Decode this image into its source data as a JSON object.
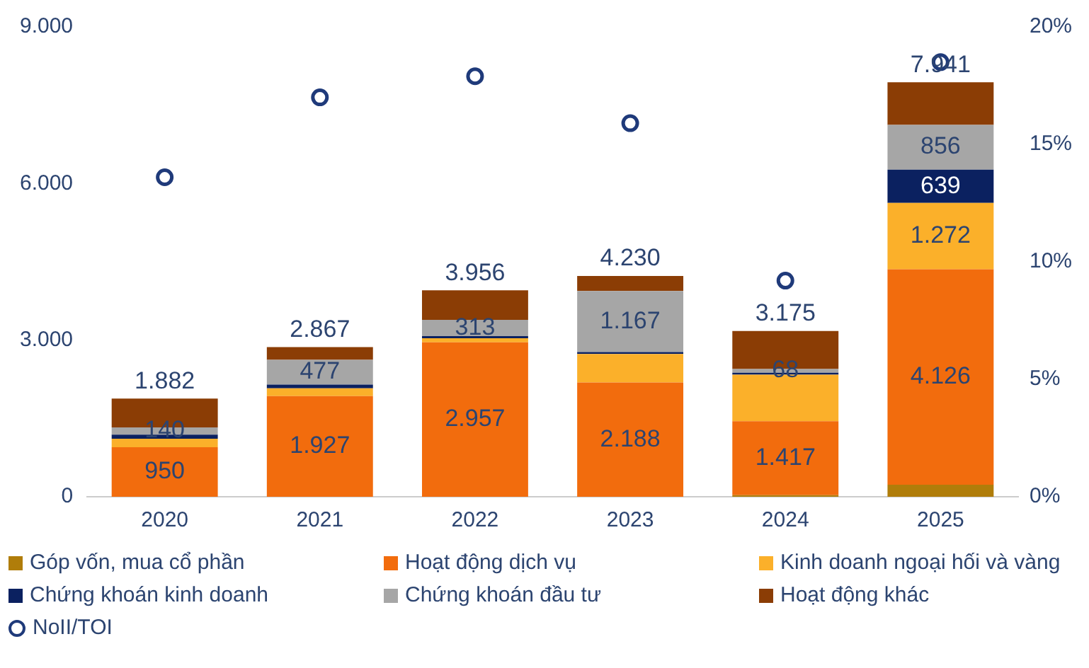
{
  "chart_data": {
    "type": "bar",
    "stacked": true,
    "categories": [
      "2020",
      "2021",
      "2022",
      "2023",
      "2024",
      "2025"
    ],
    "series": [
      {
        "name": "Góp vốn, mua cổ phần",
        "color": "#b07d0a",
        "values": [
          0,
          0,
          0,
          0,
          30,
          230
        ],
        "value_labels": [
          null,
          null,
          null,
          null,
          null,
          null
        ]
      },
      {
        "name": "Hoạt động dịch vụ",
        "color": "#f26c0d",
        "values": [
          950,
          1927,
          2957,
          2188,
          1417,
          4126
        ],
        "value_labels": [
          "950",
          "1.927",
          "2.957",
          "2.188",
          "1.417",
          "4.126"
        ]
      },
      {
        "name": "Kinh doanh ngoại hối và vàng",
        "color": "#fbb02a",
        "values": [
          160,
          150,
          80,
          545,
          890,
          1272
        ],
        "value_labels": [
          null,
          null,
          null,
          null,
          null,
          "1.272"
        ]
      },
      {
        "name": "Chứng khoán kinh doanh",
        "color": "#0b2160",
        "values": [
          80,
          70,
          40,
          40,
          40,
          639
        ],
        "value_labels": [
          null,
          null,
          null,
          null,
          null,
          "639"
        ]
      },
      {
        "name": "Chứng khoán đầu tư",
        "color": "#a6a6a6",
        "values": [
          140,
          477,
          313,
          1167,
          68,
          856
        ],
        "value_labels": [
          "140",
          "477",
          "313",
          "1.167",
          "68",
          "856"
        ]
      },
      {
        "name": "Hoạt động khác",
        "color": "#8b3d05",
        "values": [
          552,
          243,
          566,
          290,
          730,
          818
        ],
        "value_labels": [
          null,
          null,
          null,
          null,
          null,
          null
        ]
      },
      {
        "name": "NoII/TOI",
        "type": "scatter",
        "axis": "y2",
        "marker": "circle",
        "color": "#1f3a7a",
        "values": [
          13.6,
          17.0,
          17.9,
          15.9,
          9.2,
          18.5
        ]
      }
    ],
    "totals": [
      "1.882",
      "2.867",
      "3.956",
      "4.230",
      "3.175",
      "7.941"
    ],
    "ylim": [
      0,
      9000
    ],
    "yticks": [
      {
        "value": 0,
        "label": "0"
      },
      {
        "value": 3000,
        "label": "3.000"
      },
      {
        "value": 6000,
        "label": "6.000"
      },
      {
        "value": 9000,
        "label": "9.000"
      }
    ],
    "y2lim": [
      0,
      20
    ],
    "y2ticks": [
      {
        "value": 0,
        "label": "0%"
      },
      {
        "value": 5,
        "label": "5%"
      },
      {
        "value": 10,
        "label": "10%"
      },
      {
        "value": 15,
        "label": "15%"
      },
      {
        "value": 20,
        "label": "20%"
      }
    ],
    "grid": false,
    "legend": "bottom"
  }
}
